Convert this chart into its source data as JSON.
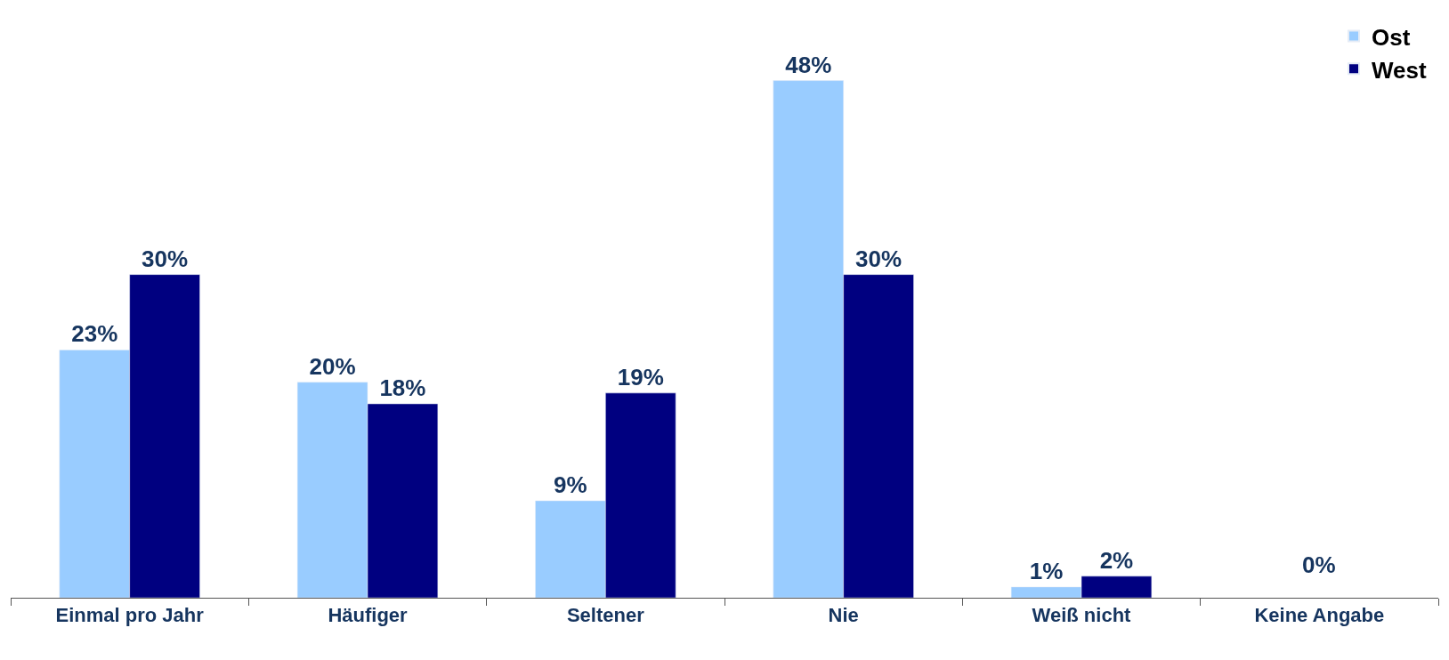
{
  "chart_data": {
    "type": "bar",
    "categories": [
      "Einmal pro Jahr",
      "Häufiger",
      "Seltener",
      "Nie",
      "Weiß nicht",
      "Keine Angabe"
    ],
    "series": [
      {
        "name": "Ost",
        "color": "#99ccff",
        "values": [
          23,
          20,
          9,
          48,
          1,
          null
        ],
        "value_labels": [
          "23%",
          "20%",
          "9%",
          "48%",
          "1%",
          null
        ]
      },
      {
        "name": "West",
        "color": "#000080",
        "values": [
          30,
          18,
          19,
          30,
          2,
          null
        ],
        "value_labels": [
          "30%",
          "18%",
          "19%",
          "30%",
          "2%",
          null
        ]
      }
    ],
    "annotations": [
      "0%"
    ],
    "legend": "top right"
  }
}
